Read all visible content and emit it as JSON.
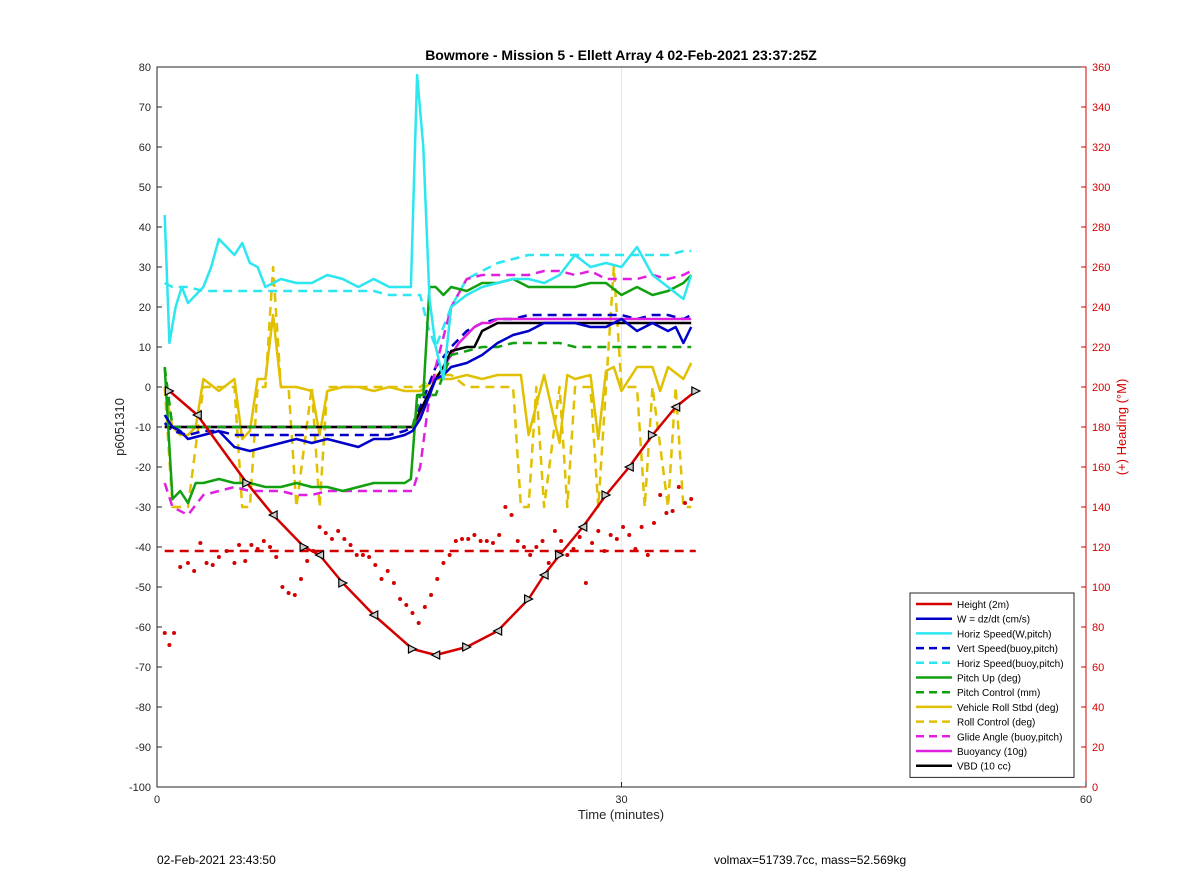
{
  "footer": {
    "timestamp": "02-Feb-2021 23:43:50",
    "params": "volmax=51739.7cc, mass=52.569kg"
  },
  "chart_data": {
    "type": "line",
    "title": "Bowmore - Mission 5 - Ellett Array 4 02-Feb-2021 23:37:25Z",
    "xlabel": "Time (minutes)",
    "ylabel": "p6051310",
    "y2label": "(+) Heading (°M)",
    "xlim": [
      0,
      60
    ],
    "ylim": [
      -100,
      80
    ],
    "y2lim": [
      0,
      360
    ],
    "xticks": [
      0,
      30,
      60
    ],
    "yticks": [
      -100,
      -90,
      -80,
      -70,
      -60,
      -50,
      -40,
      -30,
      -20,
      -10,
      0,
      10,
      20,
      30,
      40,
      50,
      60,
      70,
      80
    ],
    "y2ticks": [
      0,
      20,
      40,
      60,
      80,
      100,
      120,
      140,
      160,
      180,
      200,
      220,
      240,
      260,
      280,
      300,
      320,
      340,
      360
    ],
    "grid": "x-only",
    "legend_position": "bottom-right",
    "colors": {
      "height": "#d40000",
      "w": "#0000c8",
      "horiz": "#2ce6f0",
      "pitch": "#10a010",
      "roll": "#e0c000",
      "glide": "#e020e0",
      "vbd": "#000000",
      "heading": "#d40000"
    },
    "series": [
      {
        "name": "Height (2m)",
        "style": "solid",
        "color": "#d40000",
        "axis": "left",
        "markers": "triangles",
        "x": [
          0.8,
          2.6,
          5.8,
          7.5,
          9.5,
          10.5,
          12,
          14,
          16.5,
          18,
          20,
          22,
          24,
          25,
          26,
          27.5,
          29,
          30.5,
          32,
          33.5,
          34.8
        ],
        "y": [
          -1,
          -7,
          -24,
          -32,
          -40,
          -42,
          -49,
          -57,
          -65.5,
          -67,
          -65,
          -61,
          -53,
          -47,
          -42,
          -35,
          -27,
          -20,
          -12,
          -5,
          -1
        ]
      },
      {
        "name": "W = dz/dt (cm/s)",
        "style": "solid",
        "color": "#0000c8",
        "axis": "left",
        "x": [
          0.5,
          1,
          1.5,
          2,
          3,
          4,
          5,
          6,
          7,
          8,
          9,
          10,
          11,
          12,
          13,
          14,
          15,
          16,
          16.5,
          17,
          17.5,
          18,
          18.5,
          19,
          20,
          21,
          22,
          23,
          24,
          25,
          26,
          27,
          28,
          29,
          30,
          31,
          32,
          33,
          33.5,
          34,
          34.5
        ],
        "y": [
          -7,
          -10,
          -11,
          -13,
          -12,
          -11,
          -15,
          -16,
          -15,
          -14,
          -13,
          -14,
          -13,
          -14,
          -15,
          -13,
          -13,
          -12,
          -11,
          -8,
          -3,
          2,
          3,
          5,
          6,
          8,
          11,
          13,
          14,
          16,
          16,
          16,
          15,
          15,
          17,
          14,
          16,
          14,
          15,
          11,
          15
        ]
      },
      {
        "name": "Horiz Speed(W,pitch)",
        "style": "solid",
        "color": "#2ce6f0",
        "axis": "left",
        "x": [
          0.5,
          0.8,
          1.2,
          1.6,
          2,
          2.5,
          3,
          3.5,
          4,
          4.5,
          5,
          5.5,
          6,
          6.5,
          7,
          8,
          9,
          10,
          11,
          12,
          13,
          14,
          15,
          16,
          16.4,
          16.8,
          17.2,
          17.6,
          18,
          18.5,
          19,
          20,
          21,
          22,
          23,
          24,
          25,
          26,
          27,
          28,
          29,
          30,
          31,
          32,
          33,
          34,
          34.5
        ],
        "y": [
          43,
          11,
          20,
          25,
          21,
          23,
          25,
          30,
          37,
          35,
          33,
          36,
          31,
          30,
          25,
          27,
          26,
          26,
          28,
          27,
          25,
          27,
          25,
          25,
          25,
          78,
          60,
          22,
          10,
          2,
          20,
          23,
          25,
          26,
          27,
          27,
          26,
          28,
          33,
          30,
          31,
          30,
          35,
          28,
          25,
          22,
          28
        ]
      },
      {
        "name": "Vert Speed(buoy,pitch)",
        "style": "dashed",
        "color": "#0000c8",
        "axis": "left",
        "x": [
          0.5,
          1,
          2,
          3,
          4,
          5,
          6,
          7,
          8,
          9,
          10,
          11,
          12,
          13,
          14,
          15,
          16,
          16.5,
          17,
          17.5,
          18,
          19,
          20,
          21,
          22,
          23,
          24,
          25,
          26,
          27,
          28,
          29,
          30,
          31,
          32,
          33,
          34,
          34.5
        ],
        "y": [
          -9,
          -11,
          -12,
          -11,
          -11,
          -12,
          -12,
          -12,
          -12,
          -12,
          -12,
          -12,
          -12,
          -12,
          -12,
          -12,
          -11,
          -10,
          -5,
          0,
          5,
          10,
          14,
          16,
          17,
          17,
          18,
          18,
          18,
          18,
          18,
          18,
          18,
          17,
          18,
          18,
          17,
          18
        ]
      },
      {
        "name": "Horiz Speed(buoy,pitch)",
        "style": "dashed",
        "color": "#2ce6f0",
        "axis": "left",
        "x": [
          0.5,
          1,
          2,
          3,
          4,
          5,
          6,
          7,
          8,
          9,
          10,
          11,
          12,
          13,
          14,
          15,
          16,
          17,
          17.5,
          18,
          19,
          20,
          21,
          22,
          23,
          24,
          25,
          26,
          27,
          28,
          29,
          30,
          31,
          32,
          33,
          34,
          34.5
        ],
        "y": [
          26,
          25,
          25,
          24,
          24,
          24,
          24,
          24,
          24,
          24,
          24,
          24,
          24,
          24,
          24,
          23,
          23,
          23,
          15,
          10,
          20,
          27,
          29,
          31,
          32,
          33,
          33,
          33,
          33,
          33,
          33,
          33,
          33,
          33,
          33,
          34,
          34
        ]
      },
      {
        "name": "Pitch Up (deg)",
        "style": "solid",
        "color": "#10a010",
        "axis": "left",
        "x": [
          0.5,
          1,
          1.5,
          2,
          2.5,
          3,
          4,
          5,
          6,
          7,
          8,
          9,
          10,
          11,
          12,
          13,
          14,
          15,
          16,
          16.4,
          16.8,
          17.2,
          17.6,
          18,
          18.5,
          19,
          20,
          21,
          22,
          23,
          24,
          25,
          26,
          27,
          28,
          29,
          30,
          31,
          32,
          33,
          34,
          34.5
        ],
        "y": [
          5,
          -28,
          -26,
          -29,
          -24,
          -24,
          -23,
          -24,
          -24,
          -25,
          -25,
          -24,
          -25,
          -25,
          -26,
          -25,
          -24,
          -24,
          -24,
          -23,
          -2,
          -2,
          25,
          25,
          23,
          25,
          24,
          26,
          26,
          27,
          25,
          25,
          25,
          25,
          26,
          26,
          23,
          25,
          23,
          24,
          26,
          28
        ]
      },
      {
        "name": "Pitch Control (mm)",
        "style": "dashed",
        "color": "#10a010",
        "axis": "left",
        "x": [
          0.5,
          1,
          2,
          3,
          5,
          10,
          15,
          16.5,
          17,
          18,
          19,
          20,
          21,
          22,
          23,
          24,
          25,
          26,
          27,
          28,
          29,
          30,
          31,
          32,
          33,
          34,
          34.5
        ],
        "y": [
          5,
          -10,
          -10,
          -10,
          -10,
          -10,
          -10,
          -10,
          -2,
          -2,
          8,
          9,
          10,
          10,
          11,
          11,
          11,
          11,
          10,
          10,
          10,
          10,
          10,
          10,
          10,
          10,
          10
        ]
      },
      {
        "name": "Vehicle Roll Stbd (deg)",
        "style": "solid",
        "color": "#e0c000",
        "axis": "left",
        "x": [
          0.5,
          1,
          1.5,
          2,
          2.5,
          3,
          4,
          5,
          5.5,
          6,
          6.5,
          7,
          7.5,
          8,
          8.5,
          9,
          10,
          10.5,
          11,
          12,
          13,
          14,
          15,
          16,
          17,
          18,
          19,
          20,
          21,
          22,
          23,
          23.5,
          24,
          25,
          26,
          26.5,
          27,
          28,
          28.5,
          29,
          29.5,
          30,
          31,
          32,
          32.5,
          33,
          34,
          34.5
        ],
        "y": [
          0,
          -10,
          -12,
          -12,
          -10,
          2,
          -1,
          2,
          -13,
          -11,
          2,
          2,
          18,
          0,
          0,
          0,
          -1,
          -12,
          -1,
          0,
          0,
          -1,
          0,
          -1,
          -1,
          2,
          2,
          3,
          2,
          3,
          3,
          3,
          -12,
          3,
          -14,
          3,
          2,
          3,
          -13,
          4,
          5,
          -1,
          5,
          5,
          -1,
          5,
          2,
          6
        ]
      },
      {
        "name": "Roll Control (deg)",
        "style": "dashed",
        "color": "#e0c000",
        "axis": "left",
        "x": [
          0.5,
          1,
          2,
          3,
          5,
          5.5,
          6,
          6.5,
          7,
          7.5,
          8,
          8.5,
          9,
          10,
          10.5,
          11,
          12,
          14,
          16,
          17,
          18,
          19,
          20,
          22,
          23,
          23.5,
          24,
          24.5,
          25,
          26,
          26.5,
          27,
          28,
          28.5,
          29,
          29.5,
          30,
          31,
          31.5,
          32,
          33,
          33.5,
          34,
          34.5
        ],
        "y": [
          0,
          -30,
          -30,
          0,
          0,
          -30,
          -30,
          0,
          0,
          30,
          0,
          0,
          -30,
          0,
          -30,
          0,
          0,
          0,
          0,
          0,
          3,
          3,
          0,
          0,
          0,
          -30,
          -30,
          0,
          -30,
          0,
          -30,
          0,
          0,
          -30,
          0,
          30,
          0,
          0,
          -30,
          0,
          -30,
          0,
          -30,
          -30
        ]
      },
      {
        "name": "Glide Angle (buoy,pitch)",
        "style": "dashed",
        "color": "#e020e0",
        "axis": "left",
        "x": [
          0.5,
          1,
          2,
          3,
          4,
          5,
          6,
          7,
          8,
          9,
          10,
          11,
          12,
          13,
          14,
          15,
          16,
          16.5,
          17,
          17.5,
          18,
          19,
          20,
          21,
          22,
          23,
          24,
          25,
          26,
          27,
          28,
          29,
          30,
          31,
          32,
          33,
          34,
          34.5
        ],
        "y": [
          -24,
          -30,
          -32,
          -27,
          -26,
          -25,
          -26,
          -26,
          -26,
          -27,
          -27,
          -26,
          -26,
          -26,
          -26,
          -26,
          -26,
          -26,
          -20,
          -5,
          5,
          20,
          27,
          28,
          28,
          28,
          28,
          29,
          29,
          28,
          29,
          27,
          27,
          27,
          28,
          27,
          28,
          29
        ]
      },
      {
        "name": "Buoyancy (10g)",
        "style": "solid",
        "color": "#e020e0",
        "axis": "left",
        "x": [
          0.5,
          16.5,
          17,
          17.5,
          18,
          18.5,
          19,
          19.5,
          20,
          20.5,
          21,
          21.5,
          22,
          34.5
        ],
        "y": [
          -10,
          -10,
          -7,
          -2,
          2,
          5,
          8,
          11,
          13,
          15,
          16,
          16,
          17,
          17
        ]
      },
      {
        "name": "VBD (10 cc)",
        "style": "solid",
        "color": "#000000",
        "axis": "left",
        "x": [
          0.5,
          16.5,
          17,
          17.5,
          18,
          18.5,
          19,
          20,
          20.5,
          21,
          22,
          34.5
        ],
        "y": [
          -10,
          -10,
          -6,
          -2,
          2,
          5,
          9,
          10,
          10,
          14,
          16,
          16
        ]
      },
      {
        "name": "Heading",
        "style": "dots",
        "color": "#d40000",
        "axis": "right",
        "legend": false,
        "x": [
          0.5,
          0.8,
          1.1,
          1.5,
          2,
          2.4,
          2.8,
          3.2,
          3.6,
          4,
          4.5,
          5,
          5.3,
          5.7,
          6.1,
          6.5,
          6.9,
          7.3,
          7.7,
          8.1,
          8.5,
          8.9,
          9.3,
          9.7,
          10.1,
          10.5,
          10.9,
          11.3,
          11.7,
          12.1,
          12.5,
          12.9,
          13.3,
          13.7,
          14.1,
          14.5,
          14.9,
          15.3,
          15.7,
          16.1,
          16.5,
          16.9,
          17.3,
          17.7,
          18.1,
          18.5,
          18.9,
          19.3,
          19.7,
          20.1,
          20.5,
          20.9,
          21.3,
          21.7,
          22.1,
          22.5,
          22.9,
          23.3,
          23.7,
          24.1,
          24.5,
          24.9,
          25.3,
          25.7,
          26.1,
          26.5,
          26.9,
          27.3,
          27.7,
          28.1,
          28.5,
          28.9,
          29.3,
          29.7,
          30.1,
          30.5,
          30.9,
          31.3,
          31.7,
          32.1,
          32.5,
          32.9,
          33.3,
          33.7,
          34.1,
          34.5
        ],
        "y": [
          77,
          71,
          77,
          110,
          112,
          108,
          122,
          112,
          111,
          115,
          118,
          112,
          121,
          113,
          121,
          119,
          123,
          120,
          115,
          100,
          97,
          96,
          104,
          113,
          118,
          130,
          127,
          124,
          128,
          124,
          121,
          116,
          116,
          115,
          111,
          104,
          108,
          102,
          94,
          91,
          87,
          82,
          90,
          96,
          104,
          112,
          116,
          123,
          124,
          124,
          126,
          123,
          123,
          122,
          126,
          140,
          136,
          123,
          120,
          116,
          120,
          123,
          112,
          128,
          123,
          116,
          119,
          125,
          102,
          122,
          128,
          118,
          126,
          124,
          130,
          126,
          119,
          130,
          116,
          132,
          146,
          137,
          138,
          150,
          142,
          144
        ]
      },
      {
        "name": "Heading mean",
        "style": "dashed",
        "color": "#d40000",
        "axis": "right",
        "legend": false,
        "x": [
          0.5,
          34.8
        ],
        "y": [
          118,
          118
        ]
      }
    ]
  }
}
